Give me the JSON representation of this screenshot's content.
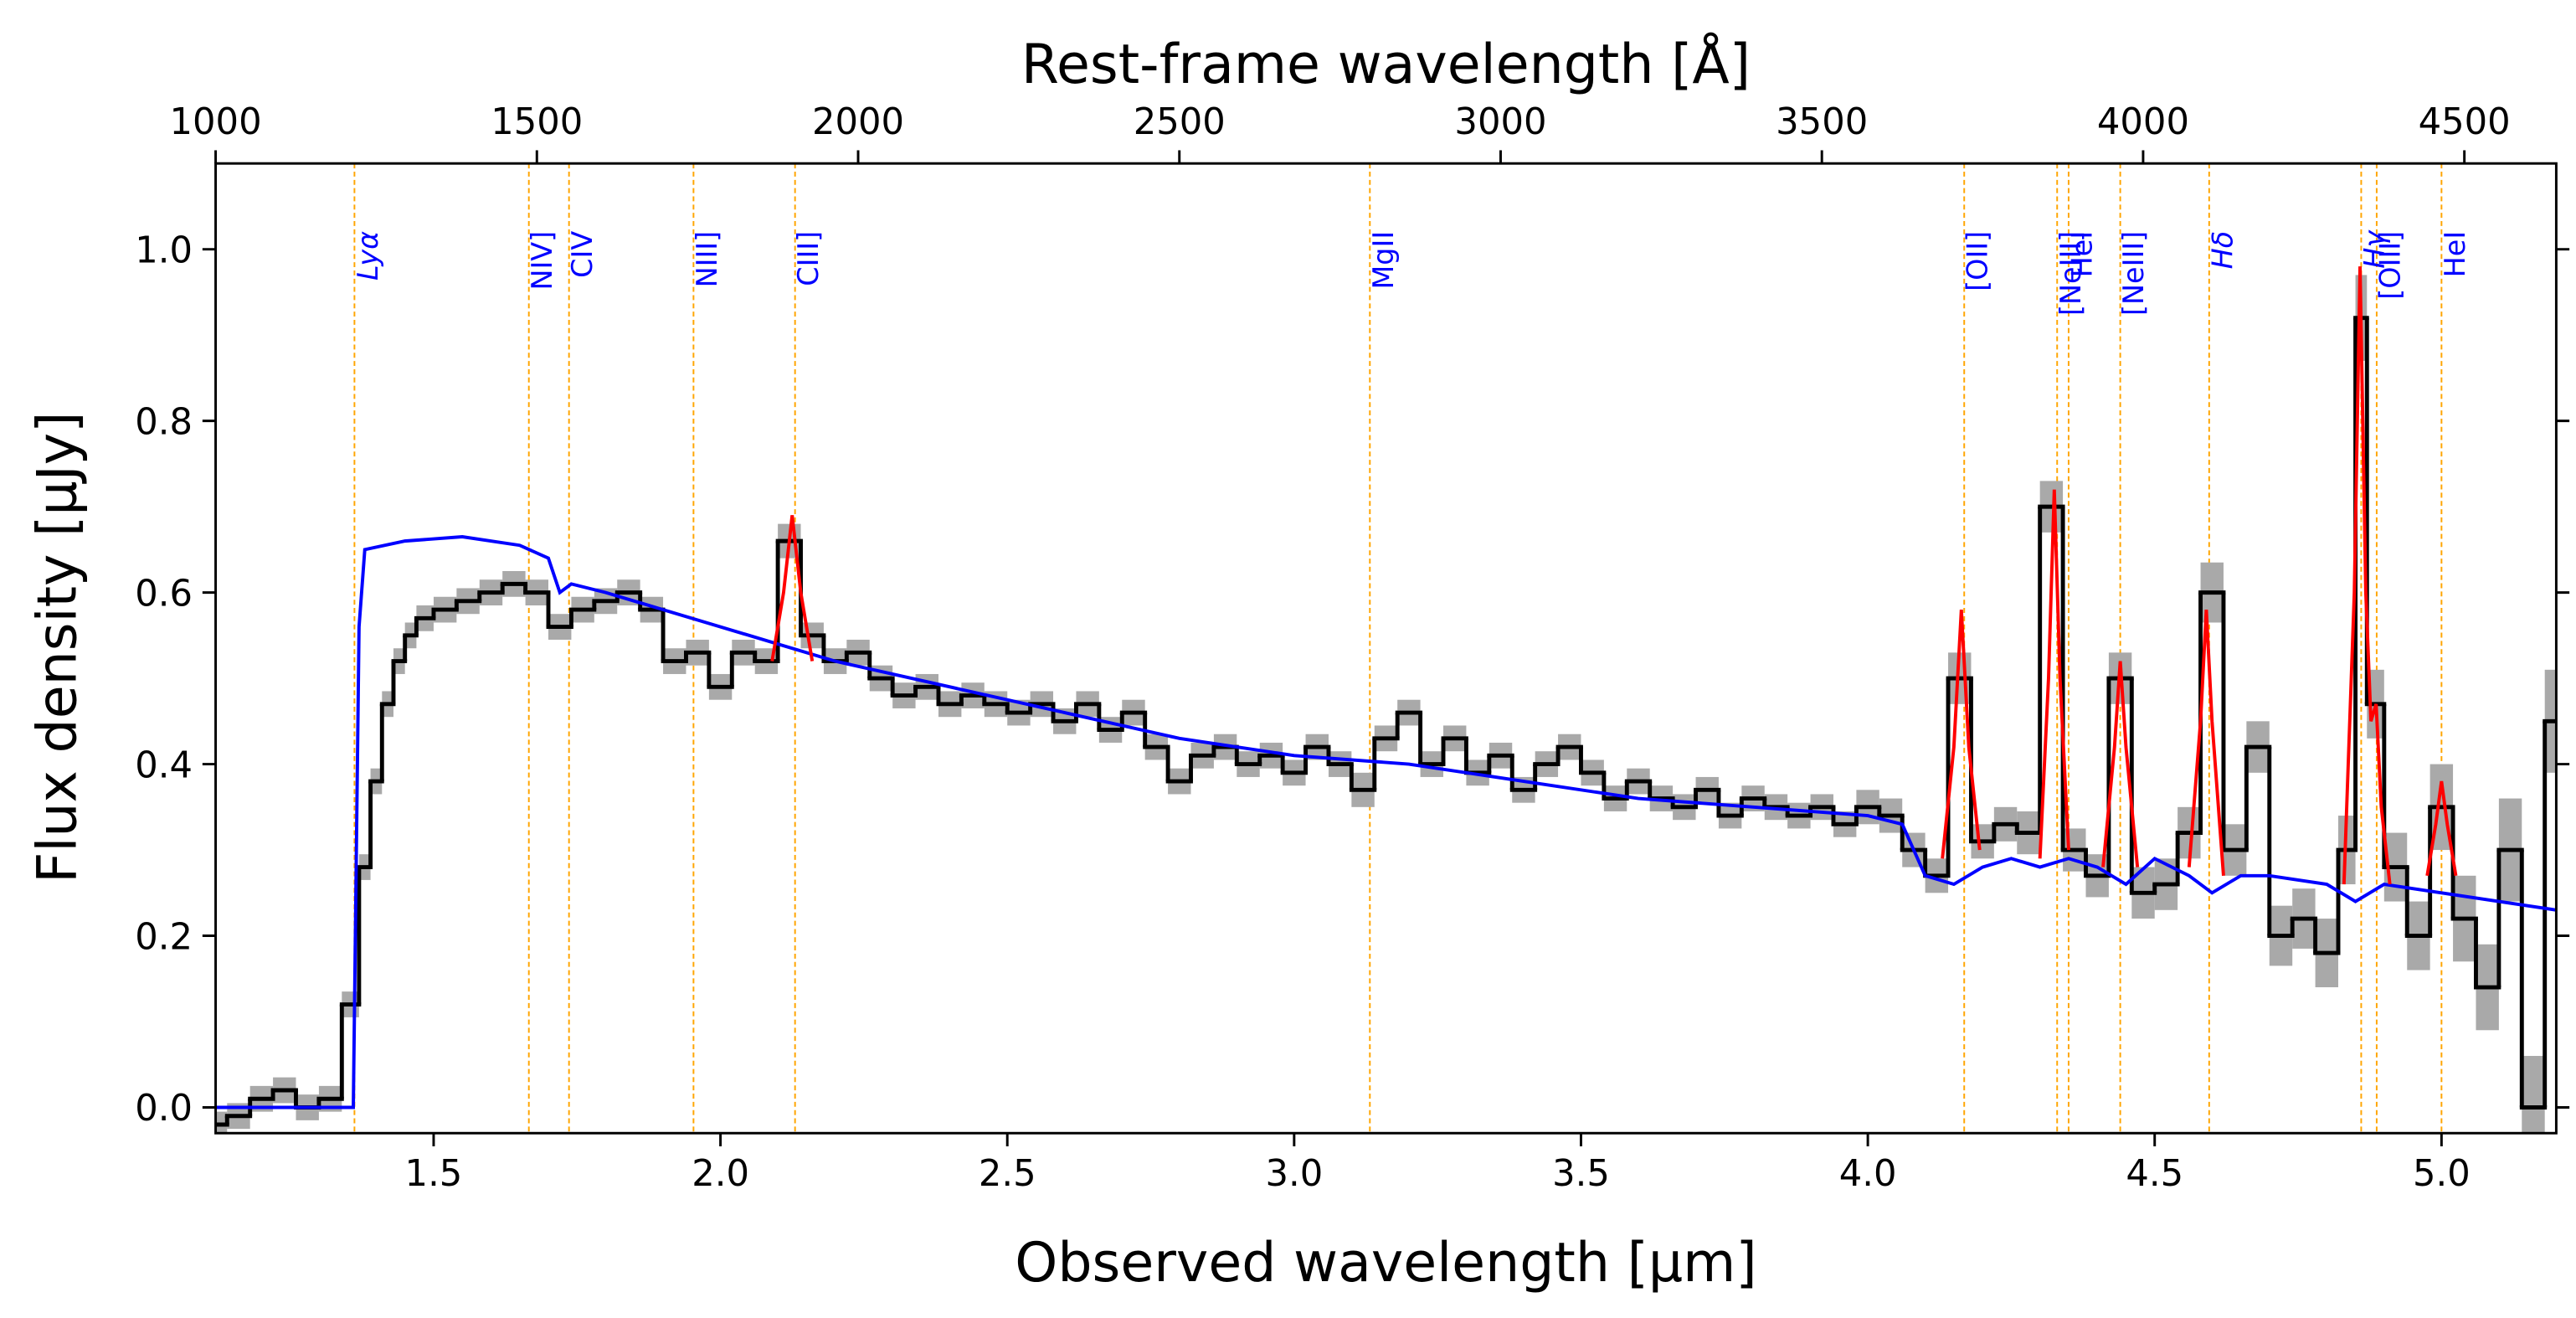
{
  "chart_data": {
    "type": "spectrum",
    "xlabel": "Observed wavelength [μm]",
    "ylabel": "Flux density [μJy]",
    "x2label": "Rest-frame wavelength [Å]",
    "xlim": [
      1.12,
      5.2
    ],
    "ylim": [
      -0.03,
      1.1
    ],
    "x2lim": [
      1000,
      4643
    ],
    "xticks": [
      1.5,
      {
        "value": 2,
        "label": "2.0"
      },
      2.5,
      {
        "value": 3,
        "label": "3.0"
      },
      3.5,
      {
        "value": 4,
        "label": "4.0"
      },
      4.5,
      {
        "value": 5,
        "label": "5.0"
      }
    ],
    "yticks": [
      {
        "value": 0,
        "label": "0.0"
      },
      0.2,
      0.4,
      0.6,
      0.8,
      {
        "value": 1,
        "label": "1.0"
      }
    ],
    "x2ticks": [
      1000,
      1500,
      2000,
      2500,
      3000,
      3500,
      4000,
      4500
    ],
    "line_color": "orange",
    "line_label_color": "blue",
    "lines": [
      {
        "name": "Lyα",
        "x": 1.362,
        "italic": true
      },
      {
        "name": "NIV]",
        "x": 1.666
      },
      {
        "name": "CIV",
        "x": 1.736
      },
      {
        "name": "NIII]",
        "x": 1.953
      },
      {
        "name": "CIII]",
        "x": 2.13
      },
      {
        "name": "MgII",
        "x": 3.132
      },
      {
        "name": "[OII]",
        "x": 4.168
      },
      {
        "name": "[NeIII]",
        "x": 4.33
      },
      {
        "name": "HeI",
        "x": 4.35
      },
      {
        "name": "[NeIII]",
        "x": 4.44
      },
      {
        "name": "Hδ",
        "x": 4.595,
        "italic": true
      },
      {
        "name": "Hγ",
        "x": 4.86,
        "italic": true
      },
      {
        "name": "[OIII]",
        "x": 4.887
      },
      {
        "name": "HeI",
        "x": 5.0
      }
    ],
    "series": [
      {
        "drawstyle": "steps-mid",
        "color": "black",
        "error_color": "#a9a9a9",
        "x": [
          1.12,
          1.16,
          1.2,
          1.24,
          1.28,
          1.32,
          1.36,
          1.38,
          1.4,
          1.42,
          1.44,
          1.46,
          1.48,
          1.52,
          1.56,
          1.6,
          1.64,
          1.68,
          1.72,
          1.76,
          1.8,
          1.84,
          1.88,
          1.92,
          1.96,
          2.0,
          2.04,
          2.08,
          2.12,
          2.16,
          2.2,
          2.24,
          2.28,
          2.32,
          2.36,
          2.4,
          2.44,
          2.48,
          2.52,
          2.56,
          2.6,
          2.64,
          2.68,
          2.72,
          2.76,
          2.8,
          2.84,
          2.88,
          2.92,
          2.96,
          3.0,
          3.04,
          3.08,
          3.12,
          3.16,
          3.2,
          3.24,
          3.28,
          3.32,
          3.36,
          3.4,
          3.44,
          3.48,
          3.52,
          3.56,
          3.6,
          3.64,
          3.68,
          3.72,
          3.76,
          3.8,
          3.84,
          3.88,
          3.92,
          3.96,
          4.0,
          4.04,
          4.08,
          4.12,
          4.16,
          4.2,
          4.24,
          4.28,
          4.32,
          4.36,
          4.4,
          4.44,
          4.48,
          4.52,
          4.56,
          4.6,
          4.64,
          4.68,
          4.72,
          4.76,
          4.8,
          4.84,
          4.86,
          4.88,
          4.92,
          4.96,
          5.0,
          5.04,
          5.08,
          5.12,
          5.16,
          5.2
        ],
        "values": [
          -0.02,
          -0.01,
          0.01,
          0.02,
          0.0,
          0.01,
          0.12,
          0.28,
          0.38,
          0.47,
          0.52,
          0.55,
          0.57,
          0.58,
          0.59,
          0.6,
          0.61,
          0.6,
          0.56,
          0.58,
          0.59,
          0.6,
          0.58,
          0.52,
          0.53,
          0.49,
          0.53,
          0.52,
          0.66,
          0.55,
          0.52,
          0.53,
          0.5,
          0.48,
          0.49,
          0.47,
          0.48,
          0.47,
          0.46,
          0.47,
          0.45,
          0.47,
          0.44,
          0.46,
          0.42,
          0.38,
          0.41,
          0.42,
          0.4,
          0.41,
          0.39,
          0.42,
          0.4,
          0.37,
          0.43,
          0.46,
          0.4,
          0.43,
          0.39,
          0.41,
          0.37,
          0.4,
          0.42,
          0.39,
          0.36,
          0.38,
          0.36,
          0.35,
          0.37,
          0.34,
          0.36,
          0.35,
          0.34,
          0.35,
          0.33,
          0.35,
          0.34,
          0.3,
          0.27,
          0.5,
          0.31,
          0.33,
          0.32,
          0.7,
          0.3,
          0.27,
          0.5,
          0.25,
          0.26,
          0.32,
          0.6,
          0.3,
          0.42,
          0.2,
          0.22,
          0.18,
          0.3,
          0.92,
          0.47,
          0.28,
          0.2,
          0.35,
          0.22,
          0.14,
          0.3,
          0.0,
          0.45
        ],
        "errors": [
          0.015,
          0.015,
          0.015,
          0.015,
          0.015,
          0.015,
          0.015,
          0.015,
          0.015,
          0.015,
          0.015,
          0.015,
          0.015,
          0.015,
          0.015,
          0.015,
          0.015,
          0.015,
          0.015,
          0.015,
          0.015,
          0.015,
          0.015,
          0.015,
          0.015,
          0.015,
          0.015,
          0.015,
          0.02,
          0.015,
          0.015,
          0.015,
          0.015,
          0.015,
          0.015,
          0.015,
          0.015,
          0.015,
          0.015,
          0.015,
          0.015,
          0.015,
          0.015,
          0.015,
          0.015,
          0.015,
          0.015,
          0.015,
          0.015,
          0.015,
          0.015,
          0.015,
          0.015,
          0.02,
          0.015,
          0.015,
          0.015,
          0.015,
          0.015,
          0.015,
          0.015,
          0.015,
          0.015,
          0.015,
          0.015,
          0.015,
          0.015,
          0.015,
          0.015,
          0.015,
          0.015,
          0.015,
          0.015,
          0.015,
          0.015,
          0.02,
          0.02,
          0.02,
          0.02,
          0.03,
          0.02,
          0.02,
          0.025,
          0.03,
          0.025,
          0.025,
          0.03,
          0.03,
          0.03,
          0.03,
          0.035,
          0.03,
          0.03,
          0.035,
          0.035,
          0.04,
          0.04,
          0.05,
          0.04,
          0.04,
          0.04,
          0.05,
          0.05,
          0.05,
          0.06,
          0.06,
          0.06
        ]
      },
      {
        "color": "blue",
        "x": [
          1.12,
          1.36,
          1.37,
          1.38,
          1.45,
          1.55,
          1.65,
          1.7,
          1.72,
          1.74,
          1.8,
          1.9,
          2.0,
          2.1,
          2.2,
          2.4,
          2.6,
          2.8,
          3.0,
          3.2,
          3.4,
          3.6,
          3.8,
          4.0,
          4.06,
          4.1,
          4.15,
          4.2,
          4.25,
          4.3,
          4.35,
          4.4,
          4.45,
          4.5,
          4.56,
          4.6,
          4.65,
          4.7,
          4.8,
          4.85,
          4.9,
          5.0,
          5.2
        ],
        "values": [
          0,
          0,
          0.56,
          0.65,
          0.66,
          0.665,
          0.655,
          0.64,
          0.6,
          0.61,
          0.6,
          0.58,
          0.56,
          0.54,
          0.52,
          0.49,
          0.46,
          0.43,
          0.41,
          0.4,
          0.38,
          0.36,
          0.35,
          0.34,
          0.33,
          0.27,
          0.26,
          0.28,
          0.29,
          0.28,
          0.29,
          0.28,
          0.26,
          0.29,
          0.27,
          0.25,
          0.27,
          0.27,
          0.26,
          0.24,
          0.26,
          0.25,
          0.23
        ]
      },
      {
        "color": "red",
        "x": [
          2.09,
          2.11,
          2.125,
          2.14,
          2.16,
          2.17,
          4.13,
          4.15,
          4.163,
          4.176,
          4.195,
          4.2,
          4.3,
          4.315,
          4.325,
          4.335,
          4.35,
          4.36,
          4.41,
          4.43,
          4.44,
          4.45,
          4.47,
          4.48,
          4.56,
          4.58,
          4.59,
          4.6,
          4.62,
          4.63,
          4.83,
          4.848,
          4.858,
          4.868,
          4.877,
          4.886,
          4.895,
          4.91,
          4.92,
          4.975,
          4.99,
          5.0,
          5.01,
          5.025
        ],
        "values": [
          0.52,
          0.6,
          0.69,
          0.6,
          0.52,
          null,
          0.29,
          0.42,
          0.58,
          0.42,
          0.3,
          null,
          0.29,
          0.5,
          0.72,
          0.5,
          0.3,
          null,
          0.28,
          0.42,
          0.52,
          0.42,
          0.28,
          null,
          0.28,
          0.45,
          0.58,
          0.45,
          0.27,
          null,
          0.26,
          0.6,
          0.98,
          0.6,
          0.45,
          0.47,
          0.35,
          0.26,
          null,
          0.27,
          0.33,
          0.38,
          0.33,
          0.27
        ]
      }
    ]
  }
}
